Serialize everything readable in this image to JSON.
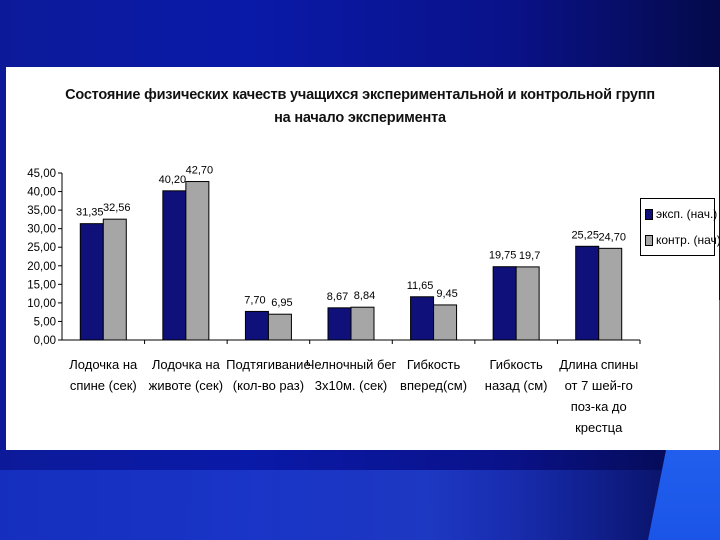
{
  "slide": {
    "colors": {
      "background": "#0a1aa8",
      "panel": "#ffffff"
    }
  },
  "chart_data": {
    "type": "bar",
    "title": "Состояние физических качеств учащихся экспериментальной и контрольной групп на начало эксперимента",
    "categories": [
      [
        "Лодочка на",
        "спине (сек)"
      ],
      [
        "Лодочка на",
        "животе (сек)"
      ],
      [
        "Подтягивание",
        "(кол-во раз)"
      ],
      [
        "Челночный бег",
        "3х10м. (сек)"
      ],
      [
        "Гибкость",
        "вперед(см)"
      ],
      [
        "Гибкость",
        "назад (см)"
      ],
      [
        "Длина спины",
        "от 7 шей-го",
        "поз-ка до",
        "крестца"
      ]
    ],
    "series": [
      {
        "name": "эксп. (нач.)",
        "color": "#10107a",
        "values": [
          31.35,
          40.2,
          7.7,
          8.67,
          11.65,
          19.75,
          25.25
        ],
        "labels": [
          "31,35",
          "40,20",
          "7,70",
          "8,67",
          "11,65",
          "19,75",
          "25,25"
        ]
      },
      {
        "name": "контр. (нач)",
        "color": "#a6a6a6",
        "values": [
          32.56,
          42.7,
          6.95,
          8.84,
          9.45,
          19.7,
          24.7
        ],
        "labels": [
          "32,56",
          "42,70",
          "6,95",
          "8,84",
          "9,45",
          "19,7",
          "24,70"
        ]
      }
    ],
    "yticks": [
      "0,00",
      "5,00",
      "10,00",
      "15,00",
      "20,00",
      "25,00",
      "30,00",
      "35,00",
      "40,00",
      "45,00"
    ],
    "ylim": [
      0,
      45
    ],
    "legend_position": "right",
    "grid": false
  }
}
